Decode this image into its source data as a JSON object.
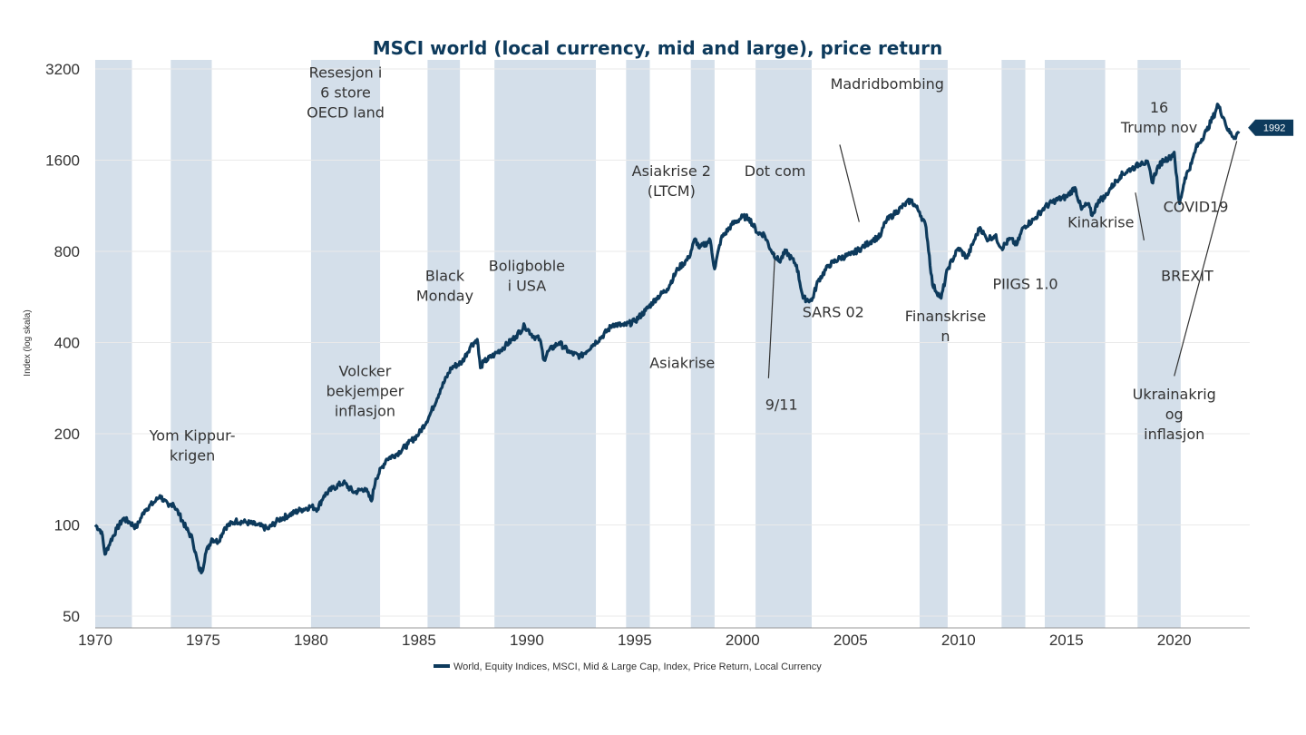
{
  "chart_data": {
    "type": "line",
    "title": "MSCI world (local currency, mid and large), price return",
    "ylabel": "Index (log skala)",
    "xlabel": "",
    "yscale": "log",
    "ylim": [
      50,
      3200
    ],
    "xlim": [
      1970,
      2023.5
    ],
    "yticks": [
      {
        "value": 50,
        "label": "50"
      },
      {
        "value": 100,
        "label": "100"
      },
      {
        "value": 200,
        "label": "200"
      },
      {
        "value": 400,
        "label": "400"
      },
      {
        "value": 800,
        "label": "800"
      },
      {
        "value": 1600,
        "label": "1600"
      },
      {
        "value": 3200,
        "label": "3200"
      }
    ],
    "xticks": [
      {
        "value": 1970,
        "label": "1970"
      },
      {
        "value": 1975,
        "label": "1975"
      },
      {
        "value": 1980,
        "label": "1980"
      },
      {
        "value": 1985,
        "label": "1985"
      },
      {
        "value": 1990,
        "label": "1990"
      },
      {
        "value": 1995,
        "label": "1995"
      },
      {
        "value": 2000,
        "label": "2000"
      },
      {
        "value": 2005,
        "label": "2005"
      },
      {
        "value": 2010,
        "label": "2010"
      },
      {
        "value": 2015,
        "label": "2015"
      },
      {
        "value": 2020,
        "label": "2020"
      }
    ],
    "shaded_periods": [
      [
        1970.0,
        1971.7
      ],
      [
        1973.5,
        1975.4
      ],
      [
        1980.0,
        1983.2
      ],
      [
        1985.4,
        1986.9
      ],
      [
        1988.5,
        1993.2
      ],
      [
        1994.6,
        1995.7
      ],
      [
        1997.6,
        1998.7
      ],
      [
        2000.6,
        2003.2
      ],
      [
        2008.2,
        2009.5
      ],
      [
        2012.0,
        2013.1
      ],
      [
        2014.0,
        2016.8
      ],
      [
        2018.3,
        2020.3
      ]
    ],
    "series": [
      {
        "name": "World, Equity Indices, MSCI, Mid & Large Cap, Index, Price Return, Local Currency",
        "color": "#0d3a5c",
        "x": [
          1970.0,
          1970.3,
          1970.45,
          1970.7,
          1971.0,
          1971.3,
          1971.6,
          1971.9,
          1972.3,
          1972.8,
          1973.0,
          1973.4,
          1973.6,
          1973.9,
          1974.2,
          1974.5,
          1974.8,
          1974.95,
          1975.1,
          1975.4,
          1975.7,
          1976.0,
          1976.5,
          1977.0,
          1977.5,
          1978.0,
          1978.5,
          1979.0,
          1979.5,
          1980.0,
          1980.3,
          1980.6,
          1981.0,
          1981.5,
          1982.0,
          1982.5,
          1982.8,
          1983.0,
          1983.5,
          1984.0,
          1984.5,
          1985.0,
          1985.5,
          1986.0,
          1986.5,
          1987.0,
          1987.4,
          1987.7,
          1987.85,
          1988.0,
          1988.5,
          1989.0,
          1989.5,
          1989.9,
          1990.3,
          1990.6,
          1990.8,
          1991.0,
          1991.5,
          1992.0,
          1992.5,
          1993.0,
          1993.5,
          1994.0,
          1994.5,
          1995.0,
          1995.5,
          1996.0,
          1996.5,
          1997.0,
          1997.5,
          1997.8,
          1998.0,
          1998.5,
          1998.7,
          1999.0,
          1999.5,
          2000.0,
          2000.3,
          2000.7,
          2001.0,
          2001.3,
          2001.7,
          2002.0,
          2002.5,
          2002.8,
          2003.2,
          2003.5,
          2004.0,
          2004.5,
          2005.0,
          2005.5,
          2006.0,
          2006.4,
          2006.6,
          2007.0,
          2007.5,
          2007.8,
          2008.2,
          2008.5,
          2008.8,
          2009.2,
          2009.5,
          2010.0,
          2010.4,
          2010.7,
          2011.0,
          2011.3,
          2011.7,
          2012.0,
          2012.4,
          2012.7,
          2013.0,
          2013.5,
          2014.0,
          2014.5,
          2015.0,
          2015.4,
          2015.7,
          2016.0,
          2016.2,
          2016.5,
          2016.8,
          2017.0,
          2017.5,
          2018.0,
          2018.2,
          2018.5,
          2018.8,
          2018.97,
          2019.2,
          2019.5,
          2019.8,
          2020.0,
          2020.2,
          2020.25,
          2020.5,
          2020.8,
          2021.0,
          2021.5,
          2021.9,
          2022.0,
          2022.3,
          2022.5,
          2022.8,
          2023.0
        ],
        "values": [
          100,
          95,
          80,
          88,
          97,
          105,
          102,
          98,
          112,
          120,
          125,
          115,
          118,
          108,
          98,
          90,
          72,
          70,
          80,
          90,
          88,
          98,
          103,
          102,
          100,
          97,
          104,
          108,
          112,
          115,
          113,
          125,
          132,
          138,
          128,
          132,
          120,
          142,
          165,
          172,
          185,
          200,
          230,
          280,
          330,
          345,
          390,
          410,
          330,
          345,
          365,
          390,
          420,
          455,
          420,
          410,
          350,
          375,
          400,
          370,
          360,
          390,
          420,
          460,
          455,
          470,
          510,
          560,
          600,
          700,
          760,
          880,
          820,
          870,
          700,
          880,
          980,
          1040,
          1030,
          920,
          910,
          810,
          740,
          800,
          720,
          560,
          550,
          640,
          720,
          760,
          780,
          820,
          870,
          900,
          1000,
          1060,
          1140,
          1180,
          1080,
          960,
          620,
          560,
          700,
          820,
          760,
          860,
          960,
          880,
          900,
          820,
          880,
          840,
          960,
          1020,
          1120,
          1180,
          1210,
          1300,
          1100,
          1150,
          1050,
          1180,
          1210,
          1280,
          1420,
          1500,
          1520,
          1580,
          1550,
          1350,
          1500,
          1600,
          1630,
          1700,
          1200,
          1150,
          1400,
          1560,
          1750,
          2000,
          2300,
          2450,
          2200,
          2000,
          1900,
          1992
        ]
      }
    ],
    "end_label": "1992",
    "annotations": [
      {
        "x": 1974.5,
        "y": 190,
        "lines": [
          "Yom Kippur-",
          "krigen"
        ]
      },
      {
        "x": 1981.6,
        "y": 3000,
        "lines": [
          "Resesjon i",
          "6 store",
          "OECD land"
        ]
      },
      {
        "x": 1982.5,
        "y": 310,
        "lines": [
          "Volcker",
          "bekjemper",
          "inflasjon"
        ]
      },
      {
        "x": 1986.2,
        "y": 640,
        "lines": [
          "Black",
          "Monday"
        ]
      },
      {
        "x": 1990.0,
        "y": 690,
        "lines": [
          "Boligboble",
          "i USA"
        ]
      },
      {
        "x": 1996.7,
        "y": 1420,
        "lines": [
          "Asiakrise 2",
          "(LTCM)"
        ]
      },
      {
        "x": 2001.5,
        "y": 1420,
        "lines": [
          "Dot com"
        ]
      },
      {
        "x": 2006.7,
        "y": 2750,
        "lines": [
          "Madridbombing"
        ]
      },
      {
        "x": 1997.2,
        "y": 330,
        "lines": [
          "Asiakrise"
        ]
      },
      {
        "x": 2001.8,
        "y": 240,
        "lines": [
          "9/11"
        ]
      },
      {
        "x": 2004.2,
        "y": 485,
        "lines": [
          "SARS 02"
        ]
      },
      {
        "x": 2009.4,
        "y": 470,
        "lines": [
          "Finanskrise",
          "n"
        ]
      },
      {
        "x": 2013.1,
        "y": 600,
        "lines": [
          "PIIGS 1.0"
        ]
      },
      {
        "x": 2016.6,
        "y": 960,
        "lines": [
          "Kinakrise"
        ]
      },
      {
        "x": 2019.3,
        "y": 2300,
        "lines": [
          "16",
          "Trump nov"
        ]
      },
      {
        "x": 2021.0,
        "y": 1080,
        "lines": [
          "COVID19"
        ]
      },
      {
        "x": 2020.6,
        "y": 640,
        "lines": [
          "BREXIT"
        ]
      },
      {
        "x": 2020.0,
        "y": 260,
        "lines": [
          "Ukrainakrig",
          "og",
          "inflasjon"
        ]
      }
    ],
    "arrows": [
      {
        "from": [
          2004.5,
          1800
        ],
        "to": [
          2005.4,
          1000
        ]
      },
      {
        "from": [
          2001.2,
          305
        ],
        "to": [
          2001.5,
          790
        ]
      },
      {
        "from": [
          2018.2,
          1250
        ],
        "to": [
          2018.6,
          870
        ]
      },
      {
        "from": [
          2020.0,
          310
        ],
        "to": [
          2022.9,
          1850
        ]
      }
    ],
    "legend": {
      "position": "bottom-center",
      "label": "World, Equity Indices, MSCI, Mid & Large Cap, Index, Price Return, Local Currency"
    }
  }
}
